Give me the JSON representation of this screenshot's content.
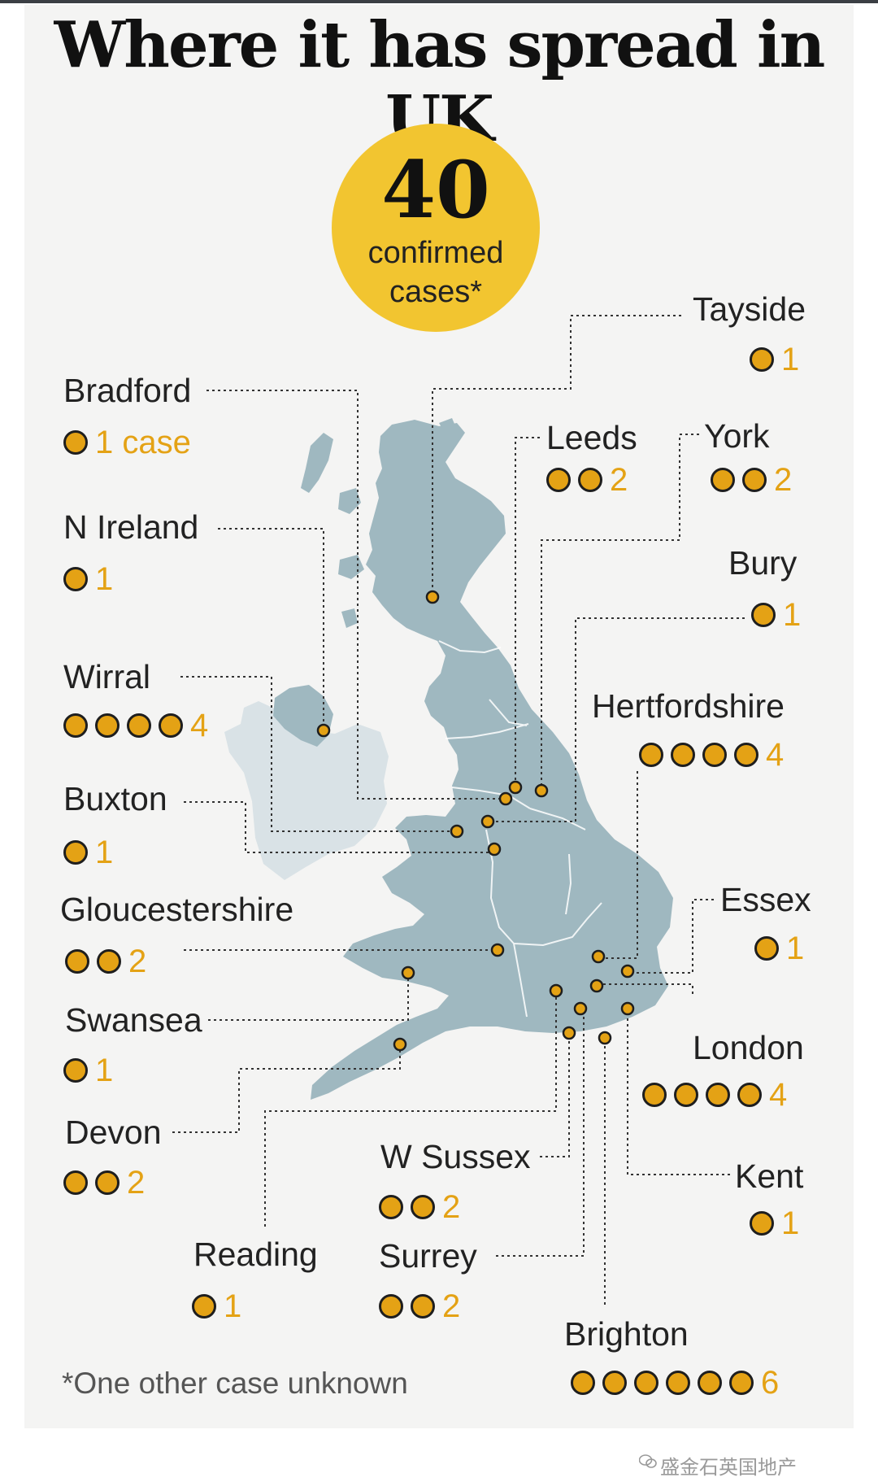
{
  "title": "Where it has spread in UK",
  "total": {
    "number": "40",
    "line1": "confirmed",
    "line2": "cases*"
  },
  "footnote": "*One other case unknown",
  "watermark": "盛金石英国地产",
  "colors": {
    "dot": "#e4a215",
    "count": "#e4a215",
    "land": "#9fb8c0",
    "badge": "#f2c530",
    "panel": "#f4f4f3"
  },
  "icons": [
    "wechat-icon"
  ],
  "locations": [
    {
      "key": "tayside",
      "name": "Tayside",
      "cases": 1,
      "count_label": "1"
    },
    {
      "key": "bradford",
      "name": "Bradford",
      "cases": 1,
      "count_label": "1 case"
    },
    {
      "key": "leeds",
      "name": "Leeds",
      "cases": 2,
      "count_label": "2"
    },
    {
      "key": "york",
      "name": "York",
      "cases": 2,
      "count_label": "2"
    },
    {
      "key": "n-ireland",
      "name": "N Ireland",
      "cases": 1,
      "count_label": "1"
    },
    {
      "key": "bury",
      "name": "Bury",
      "cases": 1,
      "count_label": "1"
    },
    {
      "key": "wirral",
      "name": "Wirral",
      "cases": 4,
      "count_label": "4"
    },
    {
      "key": "hertfordshire",
      "name": "Hertfordshire",
      "cases": 4,
      "count_label": "4"
    },
    {
      "key": "buxton",
      "name": "Buxton",
      "cases": 1,
      "count_label": "1"
    },
    {
      "key": "gloucestershire",
      "name": "Gloucestershire",
      "cases": 2,
      "count_label": "2"
    },
    {
      "key": "essex",
      "name": "Essex",
      "cases": 1,
      "count_label": "1"
    },
    {
      "key": "swansea",
      "name": "Swansea",
      "cases": 1,
      "count_label": "1"
    },
    {
      "key": "london",
      "name": "London",
      "cases": 4,
      "count_label": "4"
    },
    {
      "key": "devon",
      "name": "Devon",
      "cases": 2,
      "count_label": "2"
    },
    {
      "key": "w-sussex",
      "name": "W Sussex",
      "cases": 2,
      "count_label": "2"
    },
    {
      "key": "kent",
      "name": "Kent",
      "cases": 1,
      "count_label": "1"
    },
    {
      "key": "reading",
      "name": "Reading",
      "cases": 1,
      "count_label": "1"
    },
    {
      "key": "surrey",
      "name": "Surrey",
      "cases": 2,
      "count_label": "2"
    },
    {
      "key": "brighton",
      "name": "Brighton",
      "cases": 6,
      "count_label": "6"
    }
  ]
}
